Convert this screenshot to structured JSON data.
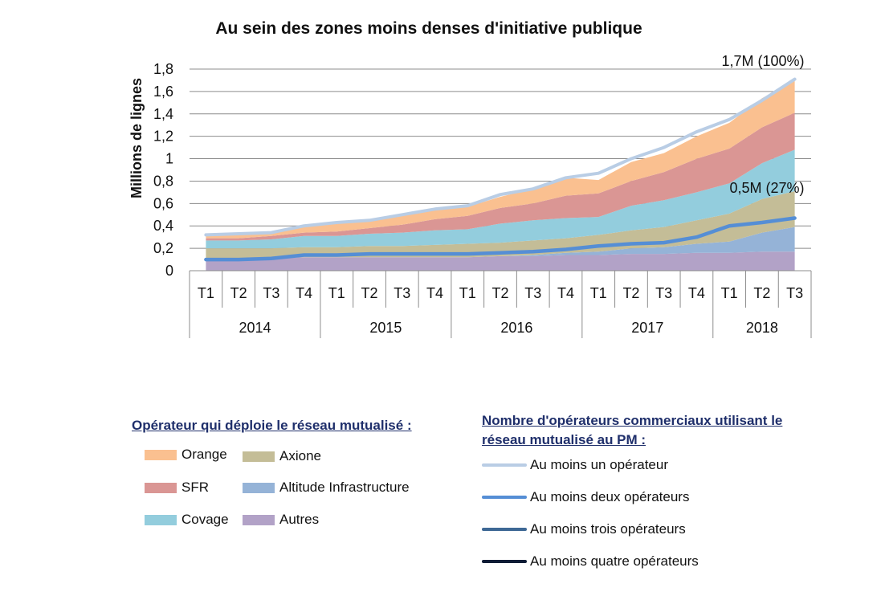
{
  "chart_data": {
    "type": "area",
    "title": "Au sein des zones moins denses d'initiative publique",
    "ylabel": "Millions de lignes",
    "ylim": [
      0,
      1.8
    ],
    "yticks": [
      "0",
      "0,2",
      "0,4",
      "0,6",
      "0,8",
      "1",
      "1,2",
      "1,4",
      "1,6",
      "1,8"
    ],
    "quarters": [
      "T1",
      "T2",
      "T3",
      "T4",
      "T1",
      "T2",
      "T3",
      "T4",
      "T1",
      "T2",
      "T3",
      "T4",
      "T1",
      "T2",
      "T3",
      "T4",
      "T1",
      "T2",
      "T3"
    ],
    "years": [
      "2014",
      "2015",
      "2016",
      "2017",
      "2018"
    ],
    "stack_order": [
      "Autres",
      "Altitude Infrastructure",
      "Axione",
      "Covage",
      "SFR",
      "Orange"
    ],
    "series": [
      {
        "name": "Autres",
        "color": "#b2a2c7",
        "type": "area",
        "values": [
          0.11,
          0.11,
          0.11,
          0.12,
          0.12,
          0.12,
          0.12,
          0.12,
          0.12,
          0.13,
          0.13,
          0.14,
          0.14,
          0.15,
          0.15,
          0.16,
          0.16,
          0.17,
          0.17
        ]
      },
      {
        "name": "Altitude Infrastructure",
        "color": "#95b3d7",
        "type": "area",
        "values": [
          0.0,
          0.0,
          0.0,
          0.0,
          0.0,
          0.0,
          0.0,
          0.0,
          0.0,
          0.0,
          0.01,
          0.02,
          0.03,
          0.05,
          0.06,
          0.08,
          0.1,
          0.17,
          0.22
        ]
      },
      {
        "name": "Axione",
        "color": "#c4bd97",
        "type": "area",
        "values": [
          0.09,
          0.09,
          0.09,
          0.09,
          0.09,
          0.1,
          0.1,
          0.11,
          0.12,
          0.12,
          0.13,
          0.13,
          0.15,
          0.16,
          0.18,
          0.21,
          0.25,
          0.3,
          0.32
        ]
      },
      {
        "name": "Covage",
        "color": "#93cddd",
        "type": "area",
        "values": [
          0.07,
          0.07,
          0.08,
          0.1,
          0.1,
          0.11,
          0.12,
          0.13,
          0.13,
          0.17,
          0.18,
          0.18,
          0.16,
          0.22,
          0.24,
          0.25,
          0.27,
          0.32,
          0.37
        ]
      },
      {
        "name": "SFR",
        "color": "#da9694",
        "type": "area",
        "values": [
          0.02,
          0.02,
          0.03,
          0.03,
          0.04,
          0.05,
          0.07,
          0.1,
          0.12,
          0.14,
          0.15,
          0.2,
          0.21,
          0.22,
          0.25,
          0.3,
          0.31,
          0.32,
          0.33
        ]
      },
      {
        "name": "Orange",
        "color": "#fac090",
        "type": "area",
        "values": [
          0.02,
          0.03,
          0.03,
          0.06,
          0.07,
          0.07,
          0.09,
          0.09,
          0.08,
          0.1,
          0.13,
          0.16,
          0.12,
          0.17,
          0.17,
          0.2,
          0.23,
          0.26,
          0.29
        ]
      },
      {
        "name": "Au moins un opérateur",
        "color": "#b9cde5",
        "type": "line",
        "values": [
          0.32,
          0.33,
          0.34,
          0.4,
          0.43,
          0.45,
          0.5,
          0.55,
          0.58,
          0.68,
          0.73,
          0.83,
          0.87,
          1.0,
          1.1,
          1.24,
          1.35,
          1.52,
          1.71
        ]
      },
      {
        "name": "Au moins deux opérateurs",
        "color": "#558ed5",
        "type": "line",
        "values": [
          0.1,
          0.1,
          0.11,
          0.14,
          0.14,
          0.15,
          0.15,
          0.15,
          0.15,
          0.16,
          0.17,
          0.19,
          0.22,
          0.24,
          0.25,
          0.3,
          0.4,
          0.43,
          0.47
        ]
      }
    ],
    "annotations": [
      "1,7M (100%)",
      "0,5M (27%)"
    ],
    "grid": true
  },
  "legend_left": {
    "heading": "Opérateur qui déploie le réseau mutualisé :",
    "items": [
      {
        "label": "Orange",
        "color": "#fac090"
      },
      {
        "label": "Axione",
        "color": "#c4bd97"
      },
      {
        "label": "SFR",
        "color": "#da9694"
      },
      {
        "label": "Altitude Infrastructure",
        "color": "#95b3d7"
      },
      {
        "label": "Covage",
        "color": "#93cddd"
      },
      {
        "label": "Autres",
        "color": "#b2a2c7"
      }
    ]
  },
  "legend_right": {
    "heading": "Nombre d'opérateurs commerciaux utilisant le réseau mutualisé au PM :",
    "items": [
      {
        "label": "Au moins un opérateur",
        "color": "#b9cde5"
      },
      {
        "label": "Au moins deux opérateurs",
        "color": "#558ed5"
      },
      {
        "label": "Au moins trois opérateurs",
        "color": "#3e6895"
      },
      {
        "label": "Au moins quatre opérateurs",
        "color": "#0e1c36"
      }
    ]
  }
}
